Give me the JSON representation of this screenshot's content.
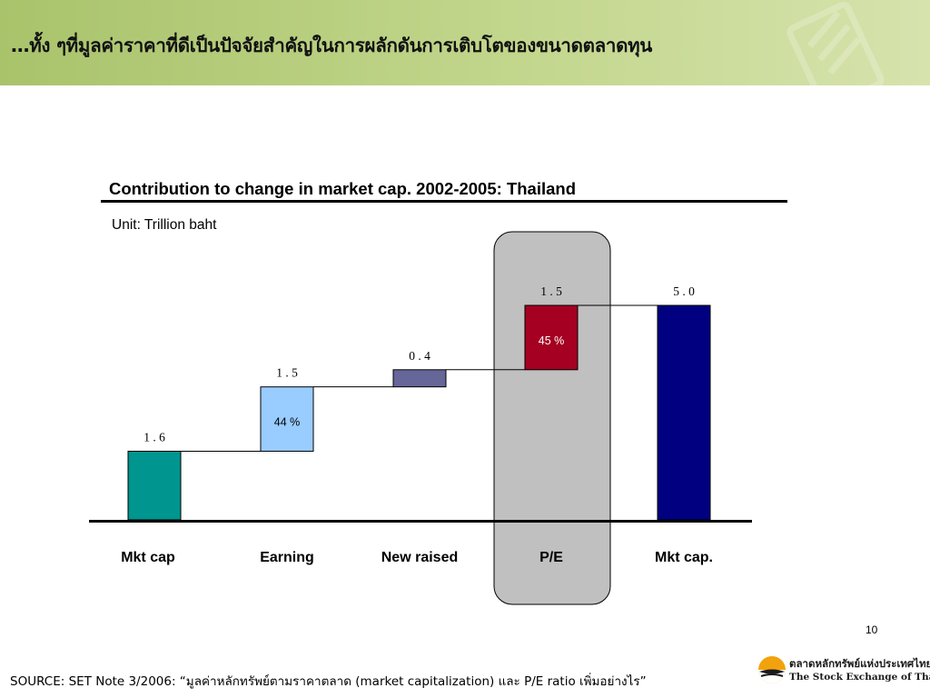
{
  "slide": {
    "title": "…ทั้ง ๆที่มูลค่าราคาที่ดีเป็นปัจจัยสำคัญในการผลักดันการเติบโตของขนาดตลาดทุน",
    "page_number": "10",
    "source": "SOURCE: SET Note 3/2006: “มูลค่าหลักทรัพย์ตามราคาตลาด (market capitalization) และ P/E ratio เพิ่มอย่างไร”",
    "logo": {
      "thai_name": "ตลาดหลักทรัพย์แห่งประเทศไทย",
      "english_name": "The Stock Exchange of Thailand"
    }
  },
  "colors": {
    "header_band": "#b9cf80",
    "mkt_cap_start": "#00958f",
    "earning": "#99ccff",
    "new_raised": "#666699",
    "pe": "#a50021",
    "mkt_cap_end": "#000080",
    "pe_highlight": "#c0c0c0"
  },
  "chart_data": {
    "type": "bar",
    "title": "Contribution to change in market cap. 2002-2005: Thailand",
    "unit": "Unit: Trillion baht",
    "categories": [
      "Mkt cap",
      "Earning",
      "New raised",
      "P/E",
      "Mkt cap."
    ],
    "bars": [
      {
        "category": "Mkt cap",
        "kind": "total",
        "value": 1.6,
        "label": "1 . 6",
        "pct_label": ""
      },
      {
        "category": "Earning",
        "kind": "increment",
        "value": 1.5,
        "label": "1 . 5",
        "pct_label": "44 %"
      },
      {
        "category": "New raised",
        "kind": "increment",
        "value": 0.4,
        "label": "0 . 4",
        "pct_label": ""
      },
      {
        "category": "P/E",
        "kind": "increment",
        "value": 1.5,
        "label": "1 . 5",
        "pct_label": "45 %"
      },
      {
        "category": "Mkt cap.",
        "kind": "total",
        "value": 5.0,
        "label": "5 . 0",
        "pct_label": ""
      }
    ],
    "highlighted_category": "P/E",
    "grid": false,
    "legend": "none"
  }
}
